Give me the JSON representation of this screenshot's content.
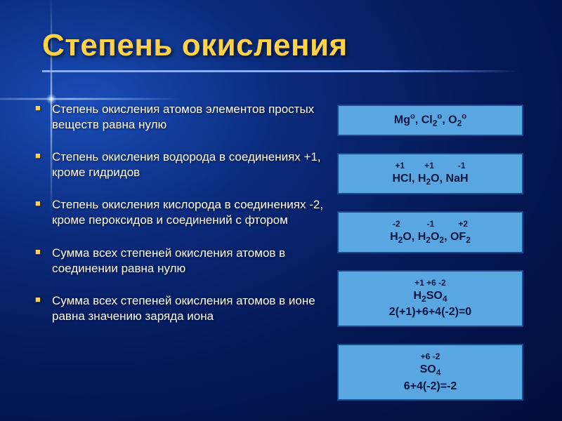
{
  "title": "Степень окисления",
  "bullets": [
    "Степень окисления атомов элементов простых веществ равна нулю",
    "Степень окисления водорода в соединениях +1, кроме гидридов",
    "Степень окисления кислорода в соединениях -2, кроме пероксидов и соединений с фтором",
    "Сумма всех степеней окисления атомов в соединении равна нулю",
    "Сумма всех степеней окисления атомов в ионе равна значению заряда иона"
  ],
  "boxes": {
    "b1": {
      "formula_html": "Mg<span class='sup'>o</span>, Cl<span class='sub'>2</span><span class='sup'>o</span>, O<span class='sub'>2</span><span class='sup'>o</span>"
    },
    "b2": {
      "ox_html": "<span style='margin-right:28px'>+1</span><span style='margin-right:34px'>+1</span><span>-1</span>",
      "formula_html": "HCl, H<span class='sub'>2</span>O, NaH"
    },
    "b3": {
      "ox_html": "<span style='margin-right:38px'>-2</span><span style='margin-right:34px'>-1</span><span>+2</span>",
      "formula_html": "H<span class='sub'>2</span>O, H<span class='sub'>2</span>O<span class='sub'>2</span>, OF<span class='sub'>2</span>"
    },
    "b4": {
      "ox_html": "+1 +6 -2",
      "formula_html": "H<span class='sub'>2</span>SO<span class='sub'>4</span>",
      "calc": "2(+1)+6+4(-2)=0"
    },
    "b5": {
      "ox_html": "+6 -2",
      "formula_html": "SO<span class='sub'>4</span>",
      "calc": "6+4(-2)=-2"
    }
  },
  "style": {
    "title_color": "#ffd24a",
    "bullet_marker_color": "#ffd24a",
    "box_bg": "#5aa6e0",
    "box_border": "#1a4a8a",
    "box_text": "#03163f",
    "bg_gradient_inner": "#1a4db8",
    "bg_gradient_outer": "#020d3a",
    "underline_color": "#8aaeff"
  }
}
